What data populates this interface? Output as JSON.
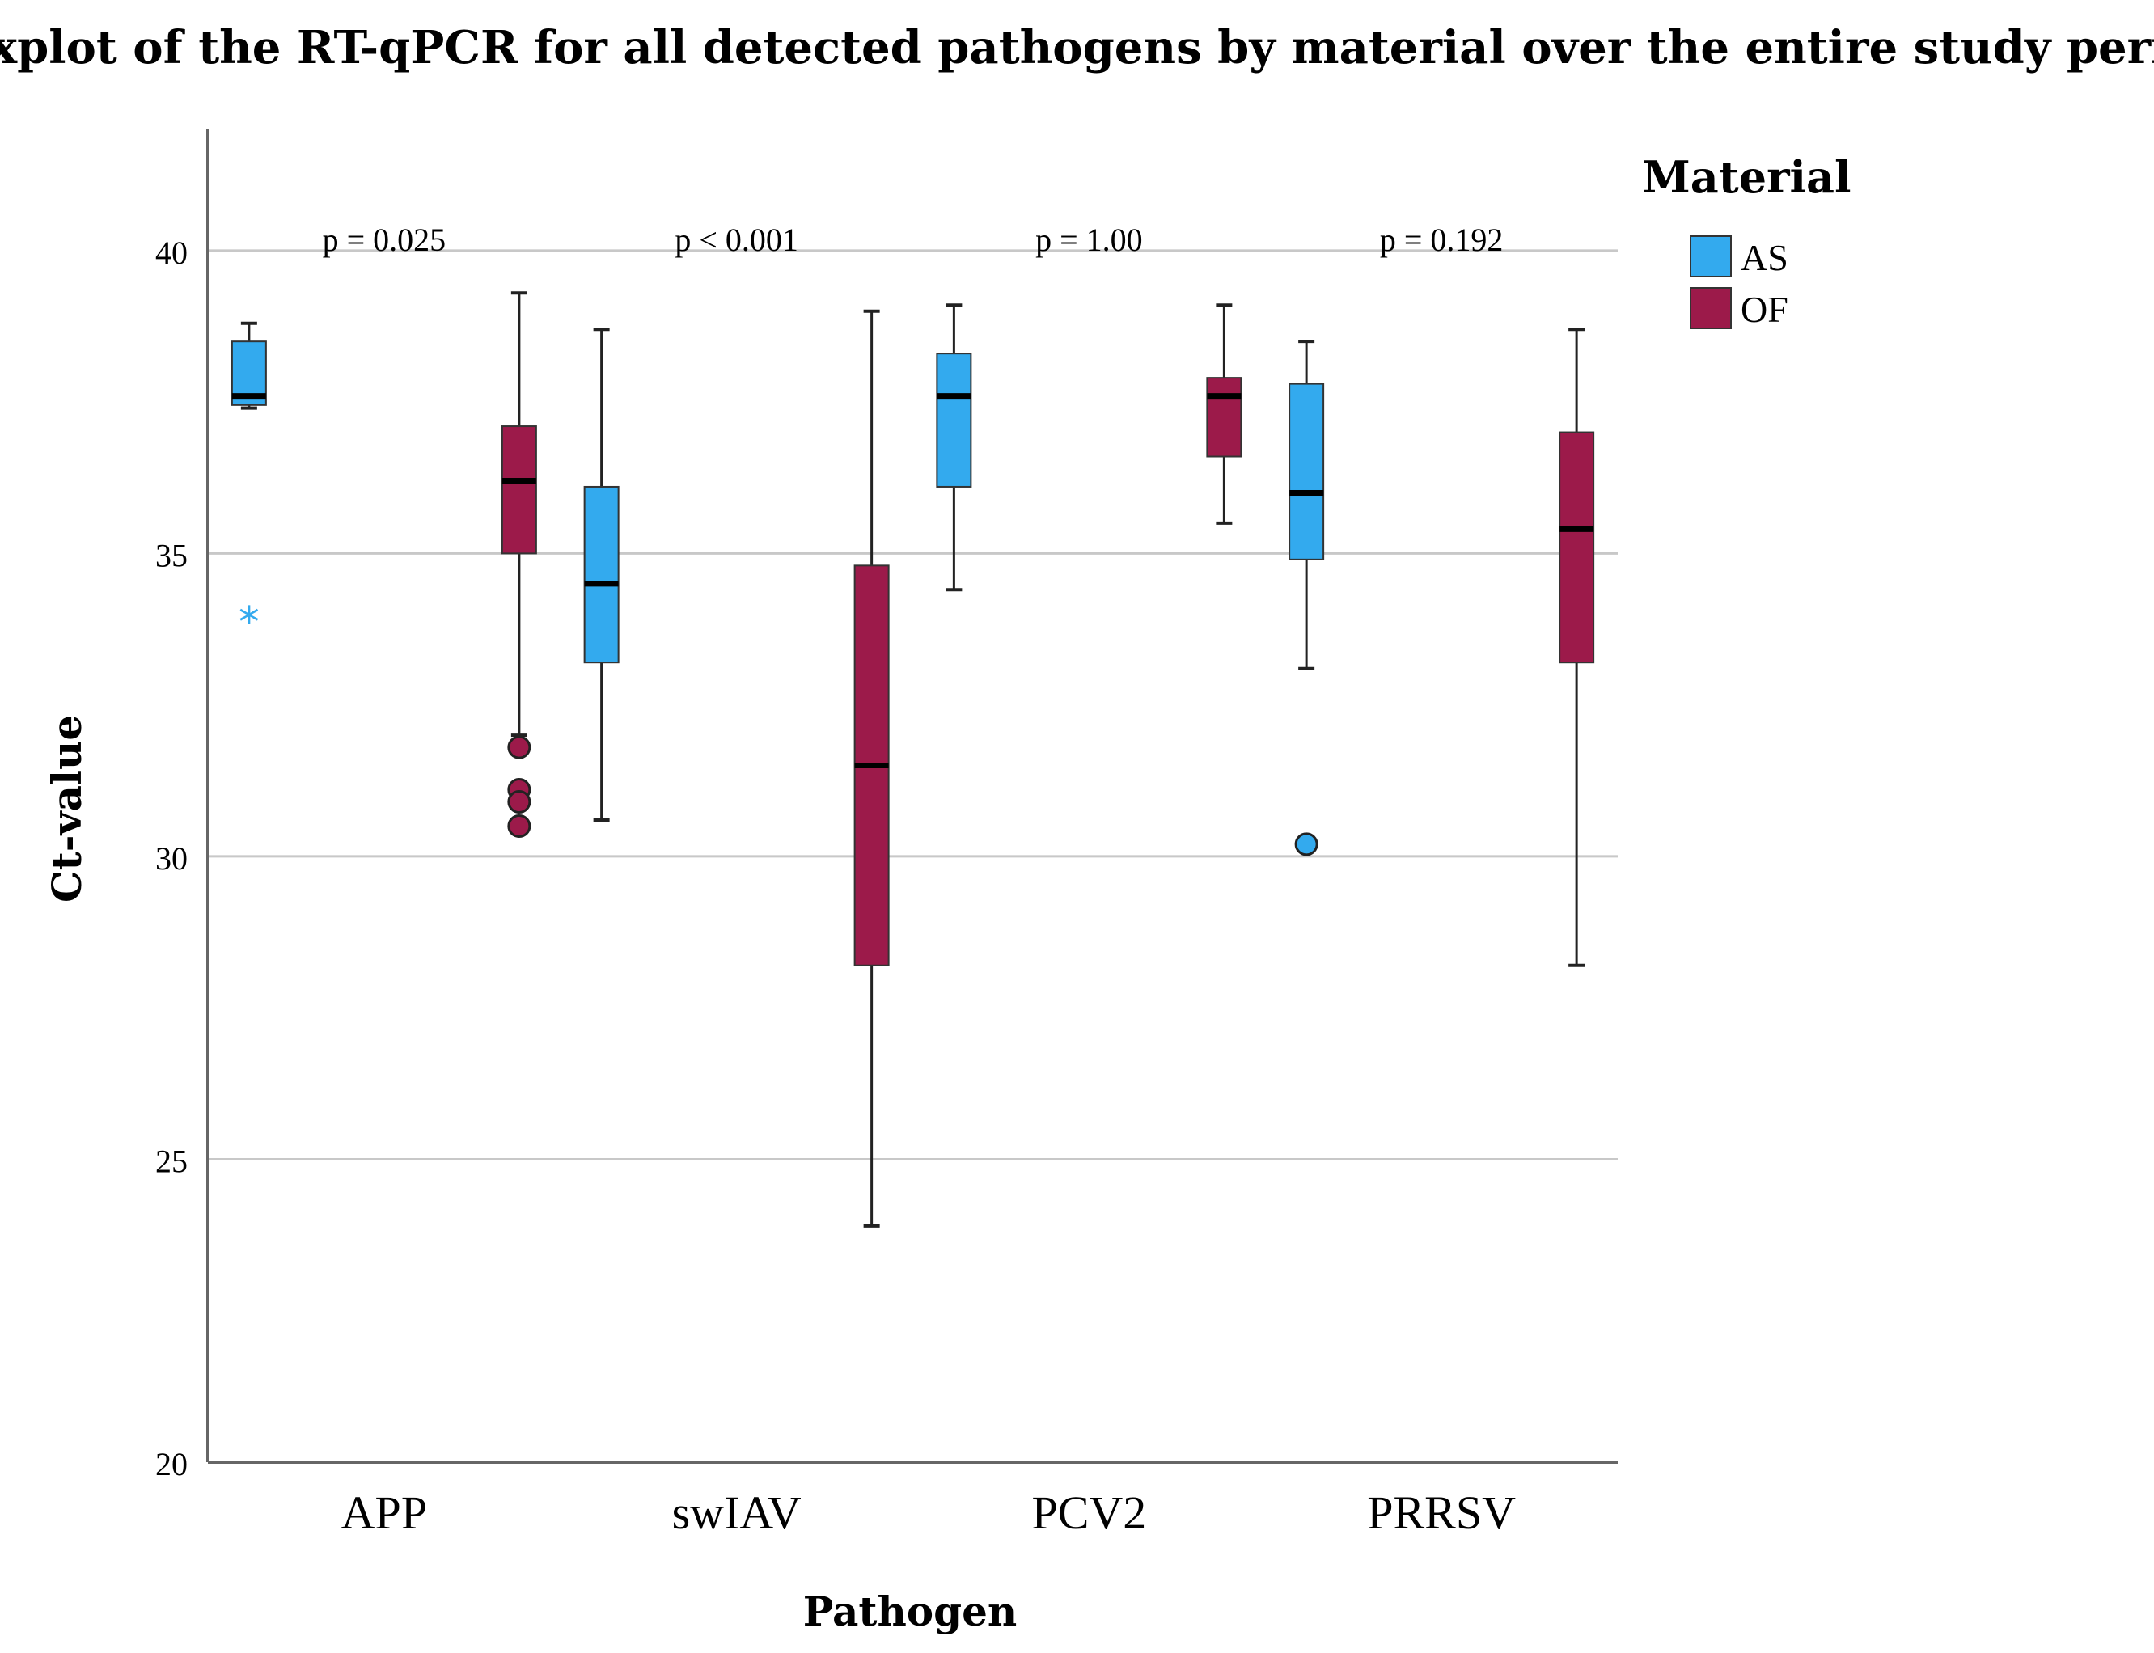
{
  "chart_data": {
    "type": "boxplot",
    "title": "Boxplot of the RT-qPCR for all detected pathogens by material over the entire study period",
    "xlabel": "Pathogen",
    "ylabel": "Ct-value",
    "ylim": [
      20,
      42
    ],
    "yticks": [
      20,
      25,
      30,
      35,
      40
    ],
    "grid": true,
    "categories": [
      "APP",
      "swIAV",
      "PCV2",
      "PRRSV"
    ],
    "annotations": [
      "p = 0.025",
      "p < 0.001",
      "p = 1.00",
      "p = 0.192"
    ],
    "legend": {
      "title": "Material",
      "position": "top-right",
      "items": [
        {
          "label": "AS",
          "color": "#33aaee"
        },
        {
          "label": "OF",
          "color": "#9c1a4a"
        }
      ]
    },
    "series": [
      {
        "name": "AS",
        "color": "#33aaee",
        "boxes": [
          {
            "min": 37.4,
            "q1": 37.45,
            "median": 37.6,
            "q3": 38.5,
            "max": 38.8,
            "outliers": [],
            "extremes": [
              33.9
            ]
          },
          {
            "min": 30.6,
            "q1": 33.2,
            "median": 34.5,
            "q3": 36.1,
            "max": 38.7,
            "outliers": [],
            "extremes": []
          },
          {
            "min": 34.4,
            "q1": 36.1,
            "median": 37.6,
            "q3": 38.3,
            "max": 39.1,
            "outliers": [],
            "extremes": []
          },
          {
            "min": 33.1,
            "q1": 34.9,
            "median": 36.0,
            "q3": 37.8,
            "max": 38.5,
            "outliers": [
              30.2
            ],
            "extremes": []
          }
        ]
      },
      {
        "name": "OF",
        "color": "#9c1a4a",
        "boxes": [
          {
            "min": 32.0,
            "q1": 35.0,
            "median": 36.2,
            "q3": 37.1,
            "max": 39.3,
            "outliers": [
              31.8,
              31.1,
              30.9,
              30.5
            ],
            "extremes": []
          },
          {
            "min": 23.9,
            "q1": 28.2,
            "median": 31.5,
            "q3": 34.8,
            "max": 39.0,
            "outliers": [],
            "extremes": []
          },
          {
            "min": 35.5,
            "q1": 36.6,
            "median": 37.6,
            "q3": 37.9,
            "max": 39.1,
            "outliers": [],
            "extremes": []
          },
          {
            "min": 28.2,
            "q1": 33.2,
            "median": 35.4,
            "q3": 37.0,
            "max": 38.7,
            "outliers": [],
            "extremes": []
          }
        ]
      }
    ]
  }
}
